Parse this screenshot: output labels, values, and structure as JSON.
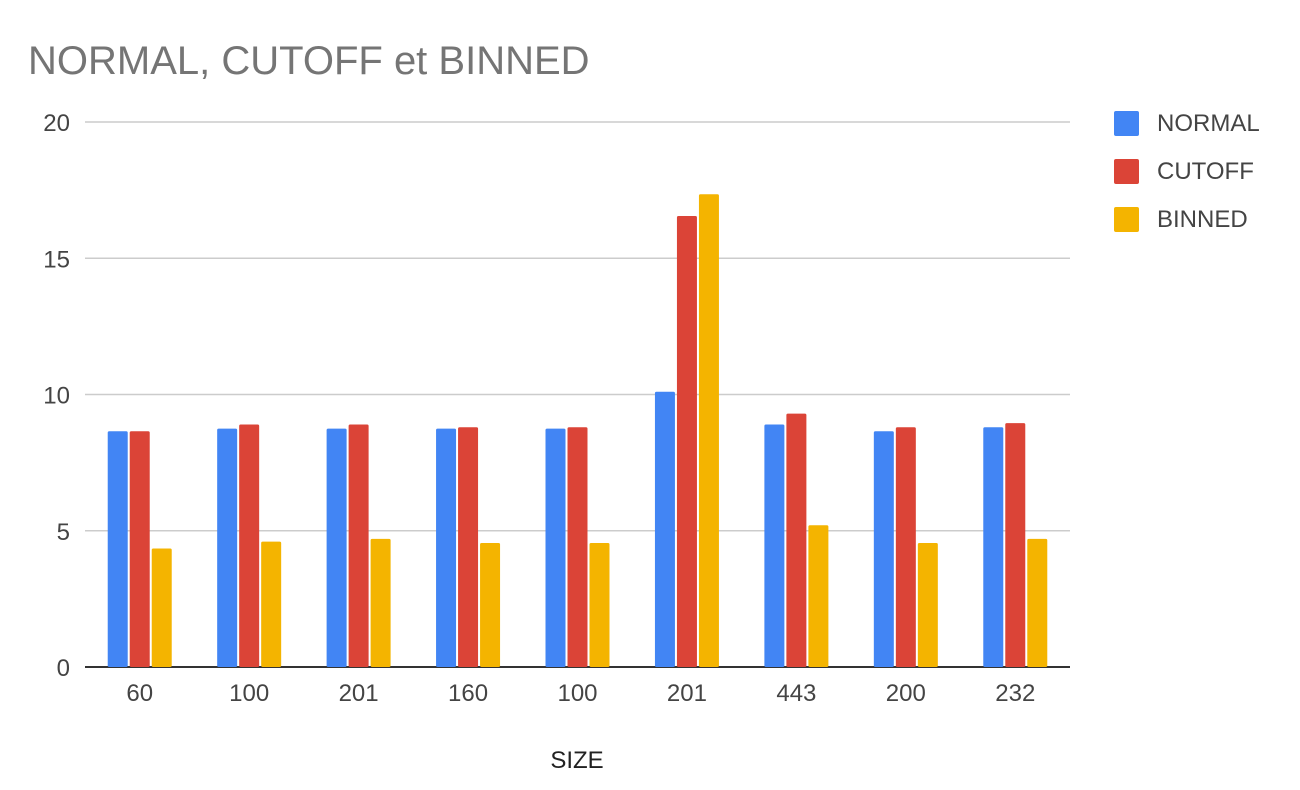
{
  "chart_data": {
    "type": "bar",
    "title": "NORMAL, CUTOFF et BINNED",
    "xlabel": "SIZE",
    "ylabel": "",
    "ylim": [
      0,
      20
    ],
    "yticks": [
      0,
      5,
      10,
      15,
      20
    ],
    "categories": [
      "60",
      "100",
      "201",
      "160",
      "100",
      "201",
      "443",
      "200",
      "232"
    ],
    "series": [
      {
        "name": "NORMAL",
        "color": "#4285F4",
        "values": [
          8.65,
          8.75,
          8.75,
          8.75,
          8.75,
          10.1,
          8.9,
          8.65,
          8.8
        ]
      },
      {
        "name": "CUTOFF",
        "color": "#DB4437",
        "values": [
          8.65,
          8.9,
          8.9,
          8.8,
          8.8,
          16.55,
          9.3,
          8.8,
          8.95
        ]
      },
      {
        "name": "BINNED",
        "color": "#F4B400",
        "values": [
          4.35,
          4.6,
          4.7,
          4.55,
          4.55,
          17.35,
          5.2,
          4.55,
          4.7
        ]
      }
    ],
    "grid": true,
    "legend_position": "right"
  }
}
